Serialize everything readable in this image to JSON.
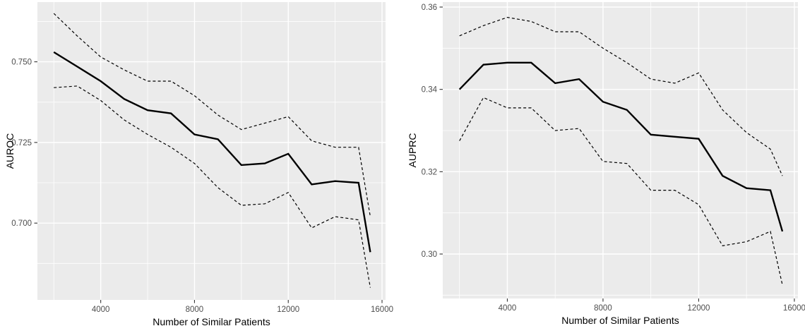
{
  "figure": {
    "background": "#FFFFFF",
    "panel_background": "#EBEBEB",
    "grid_color": "#FFFFFF",
    "line_color": "#000000",
    "tick_color": "#333333",
    "tick_label_color": "#4D4D4D",
    "axis_title_color": "#000000"
  },
  "chart_data": [
    {
      "type": "line",
      "title": "",
      "xlabel": "Number of Similar Patients",
      "ylabel": "AUROC",
      "legend": "none",
      "grid": true,
      "x": [
        2000,
        3000,
        4000,
        5000,
        6000,
        7000,
        8000,
        9000,
        10000,
        11000,
        12000,
        13000,
        14000,
        15000,
        15500
      ],
      "series": [
        {
          "name": "AUROC mean",
          "style": "solid",
          "values": [
            0.753,
            0.7485,
            0.744,
            0.7385,
            0.735,
            0.734,
            0.7275,
            0.726,
            0.718,
            0.7185,
            0.7215,
            0.712,
            0.713,
            0.7125,
            0.691
          ]
        },
        {
          "name": "AUROC upper CI",
          "style": "dashed",
          "values": [
            0.765,
            0.758,
            0.7515,
            0.7475,
            0.744,
            0.744,
            0.7395,
            0.7335,
            0.729,
            0.731,
            0.733,
            0.7255,
            0.7235,
            0.7235,
            0.702
          ]
        },
        {
          "name": "AUROC lower CI",
          "style": "dashed",
          "values": [
            0.742,
            0.7425,
            0.738,
            0.732,
            0.7275,
            0.7235,
            0.7185,
            0.711,
            0.7055,
            0.706,
            0.7095,
            0.6985,
            0.702,
            0.701,
            0.68
          ]
        }
      ],
      "xlim": [
        1300,
        16150
      ],
      "ylim": [
        0.6762,
        0.7685
      ],
      "xticks": [
        4000,
        8000,
        12000,
        16000
      ],
      "xtick_labels": [
        "4000",
        "8000",
        "12000",
        "16000"
      ],
      "xticks_minor": [
        2000,
        6000,
        10000,
        14000
      ],
      "yticks": [
        0.7,
        0.725,
        0.75
      ],
      "ytick_labels": [
        "0.700",
        "0.725",
        "0.750"
      ],
      "yticks_minor": [
        0.6875,
        0.7125,
        0.7375,
        0.7625
      ]
    },
    {
      "type": "line",
      "title": "",
      "xlabel": "Number of Similar Patients",
      "ylabel": "AUPRC",
      "legend": "none",
      "grid": true,
      "x": [
        2000,
        3000,
        4000,
        5000,
        6000,
        7000,
        8000,
        9000,
        10000,
        11000,
        12000,
        13000,
        14000,
        15000,
        15500
      ],
      "series": [
        {
          "name": "AUPRC mean",
          "style": "solid",
          "values": [
            0.34,
            0.346,
            0.3465,
            0.3465,
            0.3415,
            0.3425,
            0.337,
            0.335,
            0.329,
            0.3285,
            0.328,
            0.319,
            0.316,
            0.3155,
            0.3055
          ]
        },
        {
          "name": "AUPRC upper CI",
          "style": "dashed",
          "values": [
            0.353,
            0.3555,
            0.3575,
            0.3565,
            0.354,
            0.354,
            0.35,
            0.3465,
            0.3425,
            0.3415,
            0.344,
            0.335,
            0.3295,
            0.3255,
            0.319
          ]
        },
        {
          "name": "AUPRC lower CI",
          "style": "dashed",
          "values": [
            0.3275,
            0.338,
            0.3355,
            0.3355,
            0.33,
            0.3305,
            0.3225,
            0.322,
            0.3155,
            0.3155,
            0.312,
            0.302,
            0.303,
            0.3055,
            0.2925
          ]
        }
      ],
      "xlim": [
        1300,
        16150
      ],
      "ylim": [
        0.2892,
        0.3612
      ],
      "xticks": [
        4000,
        8000,
        12000,
        16000
      ],
      "xtick_labels": [
        "4000",
        "8000",
        "12000",
        "16000"
      ],
      "xticks_minor": [
        2000,
        6000,
        10000,
        14000
      ],
      "yticks": [
        0.3,
        0.32,
        0.34,
        0.36
      ],
      "ytick_labels": [
        "0.30",
        "0.32",
        "0.34",
        "0.36"
      ],
      "yticks_minor": [
        0.29,
        0.31,
        0.33,
        0.35
      ]
    }
  ]
}
